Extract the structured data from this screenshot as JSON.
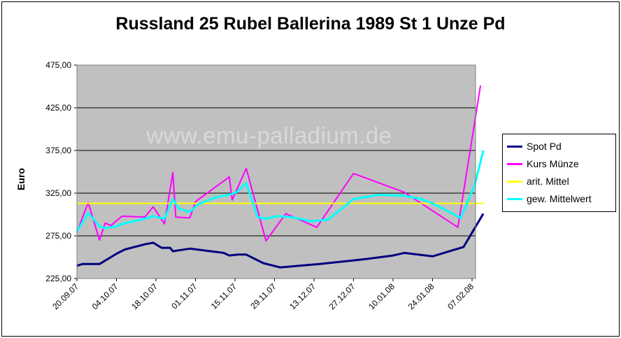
{
  "chart_data": {
    "type": "line",
    "title": "Russland 25 Rubel Ballerina 1989 St 1 Unze Pd",
    "ylabel": "Euro",
    "ylim": [
      225,
      475
    ],
    "yticks": [
      "225,00",
      "275,00",
      "325,00",
      "375,00",
      "425,00",
      "475,00"
    ],
    "x_tick_labels": [
      "20.09.07",
      "04.10.07",
      "18.10.07",
      "01.11.07",
      "15.11.07",
      "29.11.07",
      "13.12.07",
      "27.12.07",
      "10.01.08",
      "24.01.08",
      "07.02.08"
    ],
    "x_axis_type": "date",
    "grid": true,
    "legend_position": "right",
    "watermark": "www.emu-palladium.de",
    "series": [
      {
        "name": "Spot Pd",
        "color": "#000080",
        "points": [
          [
            "20.09.07",
            240
          ],
          [
            "22.09.07",
            242
          ],
          [
            "28.09.07",
            242
          ],
          [
            "04.10.07",
            254
          ],
          [
            "07.10.07",
            259
          ],
          [
            "14.10.07",
            265
          ],
          [
            "17.10.07",
            267
          ],
          [
            "20.10.07",
            261
          ],
          [
            "23.10.07",
            261
          ],
          [
            "24.10.07",
            257
          ],
          [
            "30.10.07",
            260
          ],
          [
            "11.11.07",
            255
          ],
          [
            "13.11.07",
            252
          ],
          [
            "16.11.07",
            253
          ],
          [
            "19.11.07",
            253
          ],
          [
            "25.11.07",
            243
          ],
          [
            "01.12.07",
            238
          ],
          [
            "15.12.07",
            242
          ],
          [
            "01.01.08",
            248
          ],
          [
            "10.01.08",
            252
          ],
          [
            "14.01.08",
            255
          ],
          [
            "24.01.08",
            251
          ],
          [
            "04.02.08",
            262
          ],
          [
            "11.02.08",
            301
          ]
        ]
      },
      {
        "name": "Kurs Münze",
        "color": "#ff00ff",
        "points": [
          [
            "20.09.07",
            279
          ],
          [
            "24.09.07",
            314
          ],
          [
            "28.09.07",
            270
          ],
          [
            "30.09.07",
            290
          ],
          [
            "02.10.07",
            287
          ],
          [
            "06.10.07",
            298
          ],
          [
            "14.10.07",
            297
          ],
          [
            "17.10.07",
            309
          ],
          [
            "21.10.07",
            289
          ],
          [
            "24.10.07",
            349
          ],
          [
            "25.10.07",
            297
          ],
          [
            "30.10.07",
            296
          ],
          [
            "01.11.07",
            315
          ],
          [
            "13.11.07",
            344
          ],
          [
            "14.11.07",
            317
          ],
          [
            "19.11.07",
            354
          ],
          [
            "26.11.07",
            269
          ],
          [
            "03.12.07",
            301
          ],
          [
            "14.12.07",
            285
          ],
          [
            "27.12.07",
            348
          ],
          [
            "14.01.08",
            326
          ],
          [
            "02.02.08",
            285
          ],
          [
            "10.02.08",
            451
          ]
        ]
      },
      {
        "name": "arit. Mittel",
        "color": "#ffff00",
        "points": [
          [
            "20.09.07",
            313
          ],
          [
            "11.02.08",
            313
          ]
        ]
      },
      {
        "name": "gew. Mittelwert",
        "color": "#00ffff",
        "points": [
          [
            "20.09.07",
            280
          ],
          [
            "24.09.07",
            302
          ],
          [
            "28.09.07",
            286
          ],
          [
            "30.09.07",
            284
          ],
          [
            "04.10.07",
            286
          ],
          [
            "06.10.07",
            289
          ],
          [
            "14.10.07",
            295
          ],
          [
            "17.10.07",
            298
          ],
          [
            "21.10.07",
            295
          ],
          [
            "24.10.07",
            318
          ],
          [
            "26.10.07",
            307
          ],
          [
            "30.10.07",
            303
          ],
          [
            "02.11.07",
            312
          ],
          [
            "08.11.07",
            320
          ],
          [
            "14.11.07",
            324
          ],
          [
            "16.11.07",
            327
          ],
          [
            "19.11.07",
            337
          ],
          [
            "23.11.07",
            297
          ],
          [
            "26.11.07",
            295
          ],
          [
            "30.11.07",
            298
          ],
          [
            "05.12.07",
            297
          ],
          [
            "12.12.07",
            292
          ],
          [
            "18.12.07",
            294
          ],
          [
            "27.12.07",
            318
          ],
          [
            "05.01.08",
            323
          ],
          [
            "14.01.08",
            322
          ],
          [
            "20.01.08",
            318
          ],
          [
            "24.01.08",
            313
          ],
          [
            "03.02.08",
            296
          ],
          [
            "08.02.08",
            335
          ],
          [
            "11.02.08",
            375
          ]
        ]
      }
    ]
  }
}
